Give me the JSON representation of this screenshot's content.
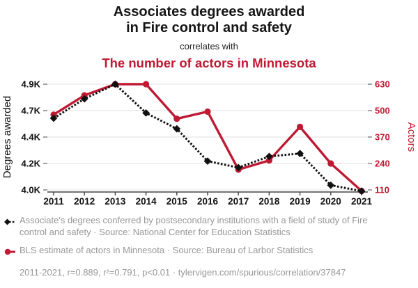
{
  "header": {
    "title_line1": "Associates degrees awarded",
    "title_line2": "in Fire control and safety",
    "connector": "correlates with",
    "title2": "The number of actors in Minnesota"
  },
  "colors": {
    "accent_red": "#bf1a33",
    "series_black": "#111111",
    "gridline": "#ececec",
    "axis": "#444444",
    "legend_gray": "#979797"
  },
  "chart_data": {
    "type": "line",
    "x": [
      2011,
      2012,
      2013,
      2014,
      2015,
      2016,
      2017,
      2018,
      2019,
      2020,
      2021
    ],
    "series": [
      {
        "name": "Associate's degrees in Fire control and safety",
        "axis": "left",
        "color": "#111111",
        "line_style": "dashed",
        "marker": "diamond",
        "values": [
          4610,
          4775,
          4900,
          4655,
          4520,
          4245,
          4190,
          4285,
          4310,
          4040,
          3990
        ]
      },
      {
        "name": "Actors in Minnesota",
        "axis": "right",
        "color": "#bf1a33",
        "line_style": "solid",
        "marker": "circle",
        "values": [
          480,
          575,
          630,
          630,
          460,
          495,
          210,
          255,
          420,
          240,
          105
        ]
      }
    ],
    "left_axis": {
      "label": "Degrees awarded",
      "tick_labels_top_to_bottom": [
        "4.9K",
        "4.7K",
        "4.4K",
        "4.2K",
        "4.0K"
      ],
      "min": 4000,
      "max": 4900
    },
    "right_axis": {
      "label": "Actors",
      "tick_labels_top_to_bottom": [
        "630",
        "500",
        "370",
        "240",
        "110"
      ],
      "min": 110,
      "max": 630
    },
    "grid": "horizontal-only",
    "legend_position": "bottom"
  },
  "legend": [
    {
      "marker": "black-diamond-dashed",
      "text": "Associate's degrees conferred by postsecondary institutions with a field of study of Fire control and safety · Source: National Center for Education Statistics"
    },
    {
      "marker": "red-circle-solid",
      "text": "BLS estimate of actors in Minnesota · Source: Bureau of Larbor Statistics"
    }
  ],
  "footer": "2011-2021, r=0.889, r²=0.791, p<0.01 · tylervigen.com/spurious/correlation/37847"
}
